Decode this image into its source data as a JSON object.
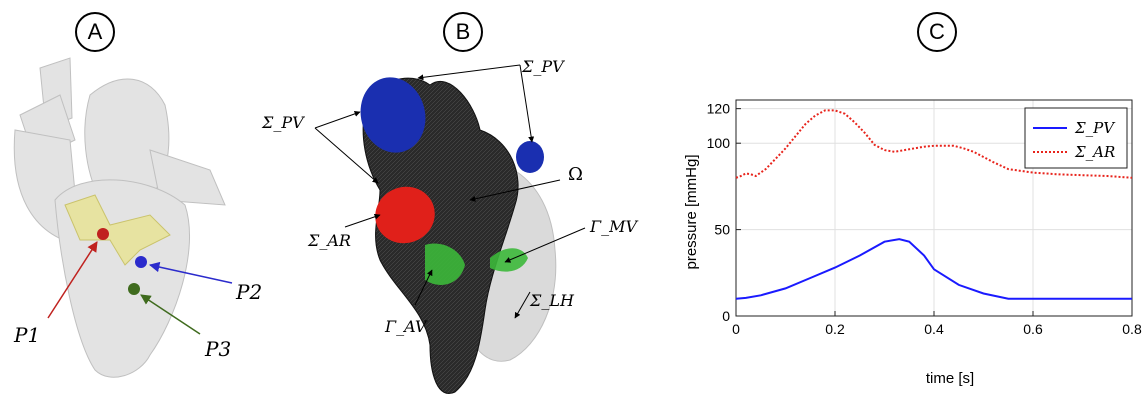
{
  "panels": {
    "a": "A",
    "b": "B",
    "c": "C"
  },
  "panel_a": {
    "p1": {
      "text": "P1",
      "color": "#c0221f"
    },
    "p2": {
      "text": "P2",
      "color": "#2b2bcc"
    },
    "p3": {
      "text": "P3",
      "color": "#3f6b1e"
    }
  },
  "panel_b": {
    "sigma_pv_left": "Σ_PV",
    "sigma_pv_top": "Σ_PV",
    "omega": "Ω",
    "sigma_ar": "Σ_AR",
    "gamma_mv": "Γ_MV",
    "gamma_av": "Γ_AV",
    "sigma_lh": "Σ_LH"
  },
  "chart_data": {
    "type": "line",
    "xlabel": "time [s]",
    "ylabel": "pressure [mmHg]",
    "xlim": [
      0,
      0.8
    ],
    "ylim": [
      0,
      125
    ],
    "xticks": [
      0,
      0.2,
      0.4,
      0.6,
      0.8
    ],
    "xtick_labels": [
      "0",
      "0.2",
      "0.4",
      "0.6",
      "0.8"
    ],
    "yticks": [
      0,
      50,
      100,
      120
    ],
    "ytick_labels": [
      "0",
      "50",
      "100",
      "120"
    ],
    "grid": true,
    "legend_position": "top-right",
    "series": [
      {
        "name": "Σ_PV",
        "color": "#1a1aff",
        "style": "solid",
        "x": [
          0,
          0.02,
          0.05,
          0.1,
          0.15,
          0.2,
          0.25,
          0.3,
          0.33,
          0.35,
          0.38,
          0.4,
          0.45,
          0.5,
          0.55,
          0.6,
          0.65,
          0.7,
          0.75,
          0.8
        ],
        "y": [
          10,
          10.5,
          12,
          16,
          22,
          28,
          35,
          43,
          44.5,
          43,
          35,
          27,
          18,
          13,
          10,
          10,
          10,
          10,
          10,
          10
        ]
      },
      {
        "name": "Σ_AR",
        "color": "#e8241c",
        "style": "dotted",
        "x": [
          0,
          0.01,
          0.02,
          0.03,
          0.04,
          0.06,
          0.08,
          0.1,
          0.12,
          0.14,
          0.16,
          0.18,
          0.2,
          0.22,
          0.24,
          0.26,
          0.28,
          0.3,
          0.32,
          0.34,
          0.36,
          0.38,
          0.4,
          0.42,
          0.44,
          0.46,
          0.48,
          0.5,
          0.52,
          0.55,
          0.6,
          0.65,
          0.7,
          0.75,
          0.8
        ],
        "y": [
          80,
          81,
          82.5,
          82,
          81,
          85,
          91,
          97,
          104,
          111,
          116,
          119,
          119,
          117,
          112,
          106,
          99,
          96,
          95,
          96,
          97,
          98,
          98.5,
          98.5,
          98.5,
          97,
          95,
          92,
          89,
          85,
          83,
          82,
          81.5,
          81,
          80
        ]
      }
    ]
  }
}
